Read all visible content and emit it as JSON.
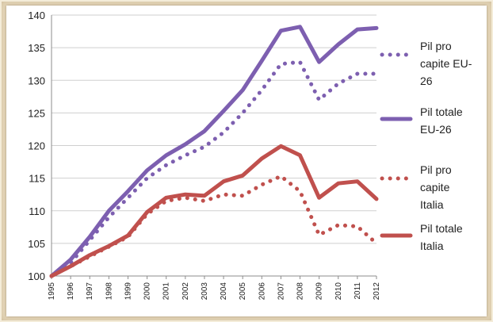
{
  "chart_data": {
    "type": "line",
    "title": "",
    "xlabel": "",
    "ylabel": "",
    "categories": [
      "1995",
      "1996",
      "1997",
      "1998",
      "1999",
      "2000",
      "2001",
      "2002",
      "2003",
      "2004",
      "2005",
      "2006",
      "2007",
      "2008",
      "2009",
      "2010",
      "2011",
      "2012"
    ],
    "ylim": [
      100,
      140
    ],
    "yticks": [
      "100",
      "105",
      "110",
      "115",
      "120",
      "125",
      "130",
      "135",
      "140"
    ],
    "grid": "horizontal",
    "legend_position": "right",
    "series": [
      {
        "name": "Pil pro capite EU-26",
        "legend_lines": [
          "Pil pro",
          "capite EU-",
          "26"
        ],
        "style": "dotted",
        "color": "#7d5fb0",
        "values": [
          100,
          102,
          105.5,
          109,
          112,
          115,
          117,
          118.5,
          119.8,
          122,
          125,
          128.5,
          132.5,
          132.8,
          127,
          129.5,
          131,
          131
        ]
      },
      {
        "name": "Pil totale EU-26",
        "legend_lines": [
          "Pil totale",
          "EU-26"
        ],
        "style": "solid",
        "color": "#7d5fb0",
        "values": [
          100,
          102.5,
          106,
          110,
          113,
          116.2,
          118.5,
          120.2,
          122.2,
          125.3,
          128.5,
          133,
          137.6,
          138.2,
          132.8,
          135.5,
          137.8,
          138
        ]
      },
      {
        "name": "Pil pro capite Italia",
        "legend_lines": [
          "Pil pro",
          "capite",
          "Italia"
        ],
        "style": "dotted",
        "color": "#c0504d",
        "values": [
          100,
          101.5,
          103,
          104.5,
          106,
          109.5,
          111.5,
          112,
          111.5,
          112.5,
          112.3,
          114,
          115.3,
          113,
          106.3,
          107.8,
          107.6,
          105
        ]
      },
      {
        "name": "Pil totale Italia",
        "legend_lines": [
          "Pil totale",
          "Italia"
        ],
        "style": "solid",
        "color": "#c0504d",
        "values": [
          100,
          101.5,
          103.2,
          104.6,
          106.2,
          109.8,
          112,
          112.5,
          112.3,
          114.5,
          115.4,
          118,
          119.9,
          118.5,
          112,
          114.2,
          114.5,
          111.8
        ]
      }
    ]
  }
}
